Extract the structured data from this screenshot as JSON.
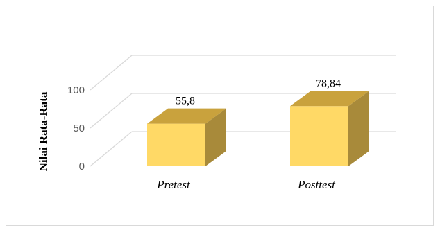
{
  "chart_data": {
    "type": "bar",
    "style": "3d-column",
    "categories": [
      "Pretest",
      "Posttest"
    ],
    "values": [
      55.8,
      78.84
    ],
    "data_labels": [
      "55,8",
      "78,84"
    ],
    "title": "",
    "xlabel": "",
    "ylabel": "Nilai Rata-Rata",
    "ylim": [
      0,
      100
    ],
    "yticks": [
      {
        "value": 0,
        "label": "0"
      },
      {
        "value": 50,
        "label": "50"
      },
      {
        "value": 100,
        "label": "100"
      }
    ],
    "grid": true,
    "legend": "none",
    "colors": {
      "bar_front": "#FFD966",
      "bar_top": "#C9A23D",
      "bar_side": "#A88A3A",
      "grid": "#d9d9d9",
      "frame": "#d9d9d9"
    }
  }
}
